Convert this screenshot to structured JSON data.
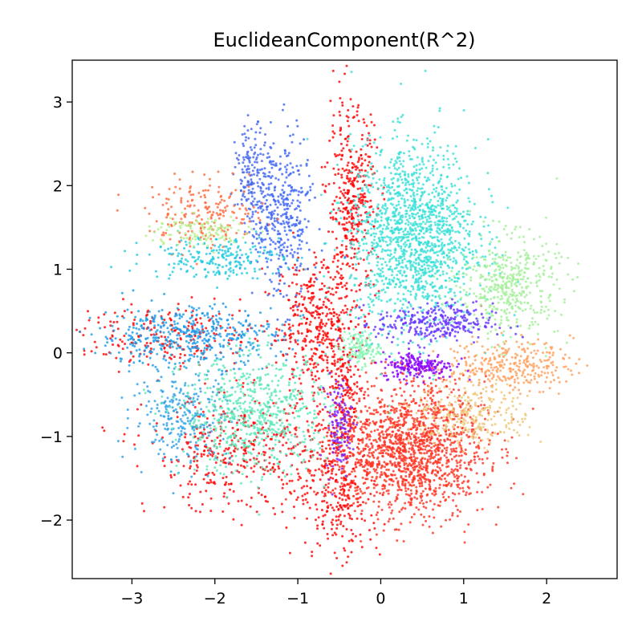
{
  "chart_data": {
    "type": "scatter",
    "title": "EuclideanComponent(R^2)",
    "xlabel": "",
    "ylabel": "",
    "xlim": [
      -3.72,
      2.85
    ],
    "ylim": [
      -2.7,
      3.5
    ],
    "xticks": [
      -3,
      -2,
      -1,
      0,
      1,
      2
    ],
    "yticks": [
      -2,
      -1,
      0,
      1,
      2,
      3
    ],
    "xtick_labels": [
      "−3",
      "−2",
      "−1",
      "0",
      "1",
      "2"
    ],
    "ytick_labels": [
      "−2",
      "−1",
      "0",
      "1",
      "2",
      "3"
    ],
    "grid": false,
    "legend": "none",
    "clusters": [
      {
        "color": "#ff0000",
        "center": [
          -0.75,
          0.35
        ],
        "spread": [
          0.25,
          0.4
        ],
        "count": 420
      },
      {
        "color": "#ff0000",
        "center": [
          -0.35,
          1.8
        ],
        "spread": [
          0.15,
          0.55
        ],
        "count": 380
      },
      {
        "color": "#ff0000",
        "center": [
          -0.5,
          -1.6
        ],
        "spread": [
          0.25,
          0.45
        ],
        "count": 300
      },
      {
        "color": "#ff0000",
        "center": [
          -1.7,
          -1.2
        ],
        "spread": [
          0.55,
          0.35
        ],
        "count": 420
      },
      {
        "color": "#ff0000",
        "center": [
          -2.5,
          0.2
        ],
        "spread": [
          0.55,
          0.18
        ],
        "count": 220
      },
      {
        "color": "#ff0000",
        "center": [
          -0.45,
          -0.5
        ],
        "spread": [
          0.12,
          0.35
        ],
        "count": 160
      },
      {
        "color": "#ff3220",
        "center": [
          0.35,
          -1.15
        ],
        "spread": [
          0.45,
          0.4
        ],
        "count": 1500
      },
      {
        "color": "#3ae0d8",
        "center": [
          0.4,
          1.4
        ],
        "spread": [
          0.38,
          0.55
        ],
        "count": 1500
      },
      {
        "color": "#3d66f5",
        "center": [
          -1.2,
          1.6
        ],
        "spread": [
          0.18,
          0.5
        ],
        "count": 380
      },
      {
        "color": "#4466ee",
        "center": [
          -1.55,
          2.1
        ],
        "spread": [
          0.1,
          0.3
        ],
        "count": 160
      },
      {
        "color": "#1a9ae8",
        "center": [
          -2.3,
          0.2
        ],
        "spread": [
          0.55,
          0.18
        ],
        "count": 450
      },
      {
        "color": "#2aa0e8",
        "center": [
          -2.4,
          -0.75
        ],
        "spread": [
          0.3,
          0.28
        ],
        "count": 260
      },
      {
        "color": "#5ae8b8",
        "center": [
          -1.5,
          -0.75
        ],
        "spread": [
          0.45,
          0.35
        ],
        "count": 650
      },
      {
        "color": "#ff6a3c",
        "center": [
          -2.1,
          1.65
        ],
        "spread": [
          0.35,
          0.2
        ],
        "count": 200
      },
      {
        "color": "#1ecbe1",
        "center": [
          -2.0,
          1.15
        ],
        "spread": [
          0.4,
          0.13
        ],
        "count": 220
      },
      {
        "color": "#b4f08c",
        "center": [
          -2.2,
          1.45
        ],
        "spread": [
          0.3,
          0.1
        ],
        "count": 120
      },
      {
        "color": "#a2f098",
        "center": [
          1.55,
          0.8
        ],
        "spread": [
          0.3,
          0.3
        ],
        "count": 450
      },
      {
        "color": "#ff9f5a",
        "center": [
          1.55,
          -0.15
        ],
        "spread": [
          0.38,
          0.15
        ],
        "count": 300
      },
      {
        "color": "#ecc878",
        "center": [
          1.1,
          -0.75
        ],
        "spread": [
          0.35,
          0.18
        ],
        "count": 280
      },
      {
        "color": "#6633ff",
        "center": [
          0.65,
          0.35
        ],
        "spread": [
          0.35,
          0.12
        ],
        "count": 300
      },
      {
        "color": "#8800ff",
        "center": [
          0.45,
          -0.15
        ],
        "spread": [
          0.22,
          0.08
        ],
        "count": 200
      },
      {
        "color": "#7a20ff",
        "center": [
          -0.5,
          -0.85
        ],
        "spread": [
          0.08,
          0.28
        ],
        "count": 120
      },
      {
        "color": "#80f8b0",
        "center": [
          -0.25,
          0.05
        ],
        "spread": [
          0.12,
          0.1
        ],
        "count": 120
      }
    ]
  }
}
